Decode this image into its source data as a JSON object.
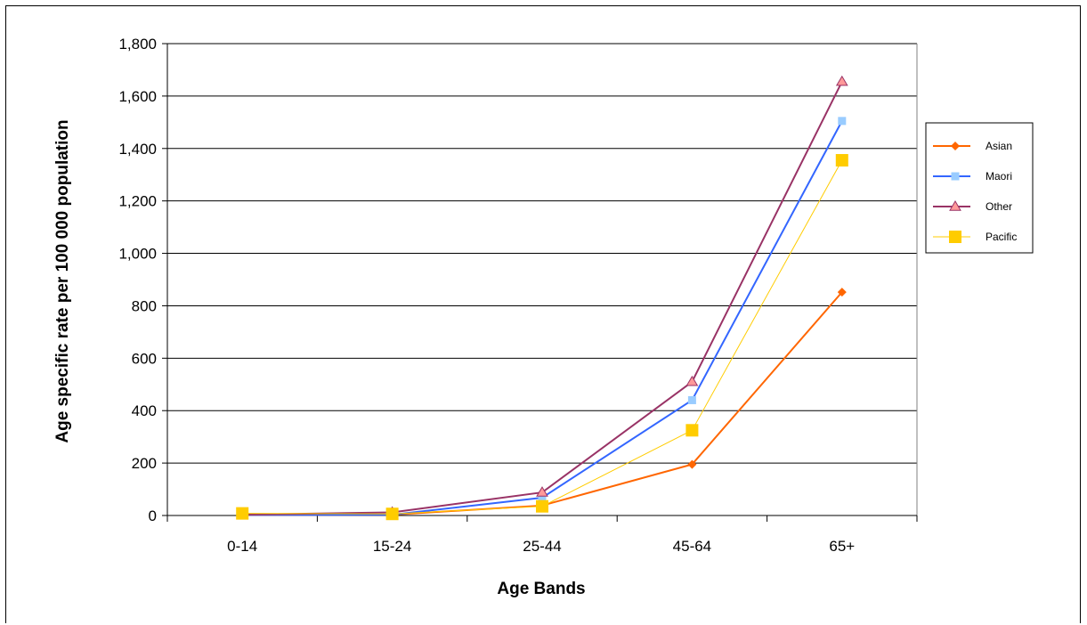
{
  "chart_data": {
    "type": "line",
    "categories": [
      "0-14",
      "15-24",
      "25-44",
      "45-64",
      "65+"
    ],
    "xlabel": "Age Bands",
    "ylabel": "Age specific rate per 100 000 population",
    "ylim": [
      0,
      1800
    ],
    "yticks": [
      0,
      200,
      400,
      600,
      800,
      1000,
      1200,
      1400,
      1600,
      1800
    ],
    "ytick_labels": [
      "0",
      "200",
      "400",
      "600",
      "800",
      "1,000",
      "1,200",
      "1,400",
      "1,600",
      "1,800"
    ],
    "grid": "horizontal",
    "legend_position": "right",
    "series": [
      {
        "name": "Asian",
        "values": [
          2,
          3,
          38,
          195,
          852
        ],
        "color": "#ff6600",
        "marker": "diamond"
      },
      {
        "name": "Maori",
        "values": [
          2,
          3,
          68,
          440,
          1505
        ],
        "color": "#3366ff",
        "marker_color": "#99ccff",
        "marker": "square"
      },
      {
        "name": "Other",
        "values": [
          3,
          12,
          88,
          510,
          1655
        ],
        "color": "#993366",
        "marker_color": "#ff9999",
        "marker": "triangle"
      },
      {
        "name": "Pacific",
        "values": [
          8,
          6,
          35,
          325,
          1355
        ],
        "color": "#ffcc00",
        "marker": "bigsquare"
      }
    ]
  }
}
